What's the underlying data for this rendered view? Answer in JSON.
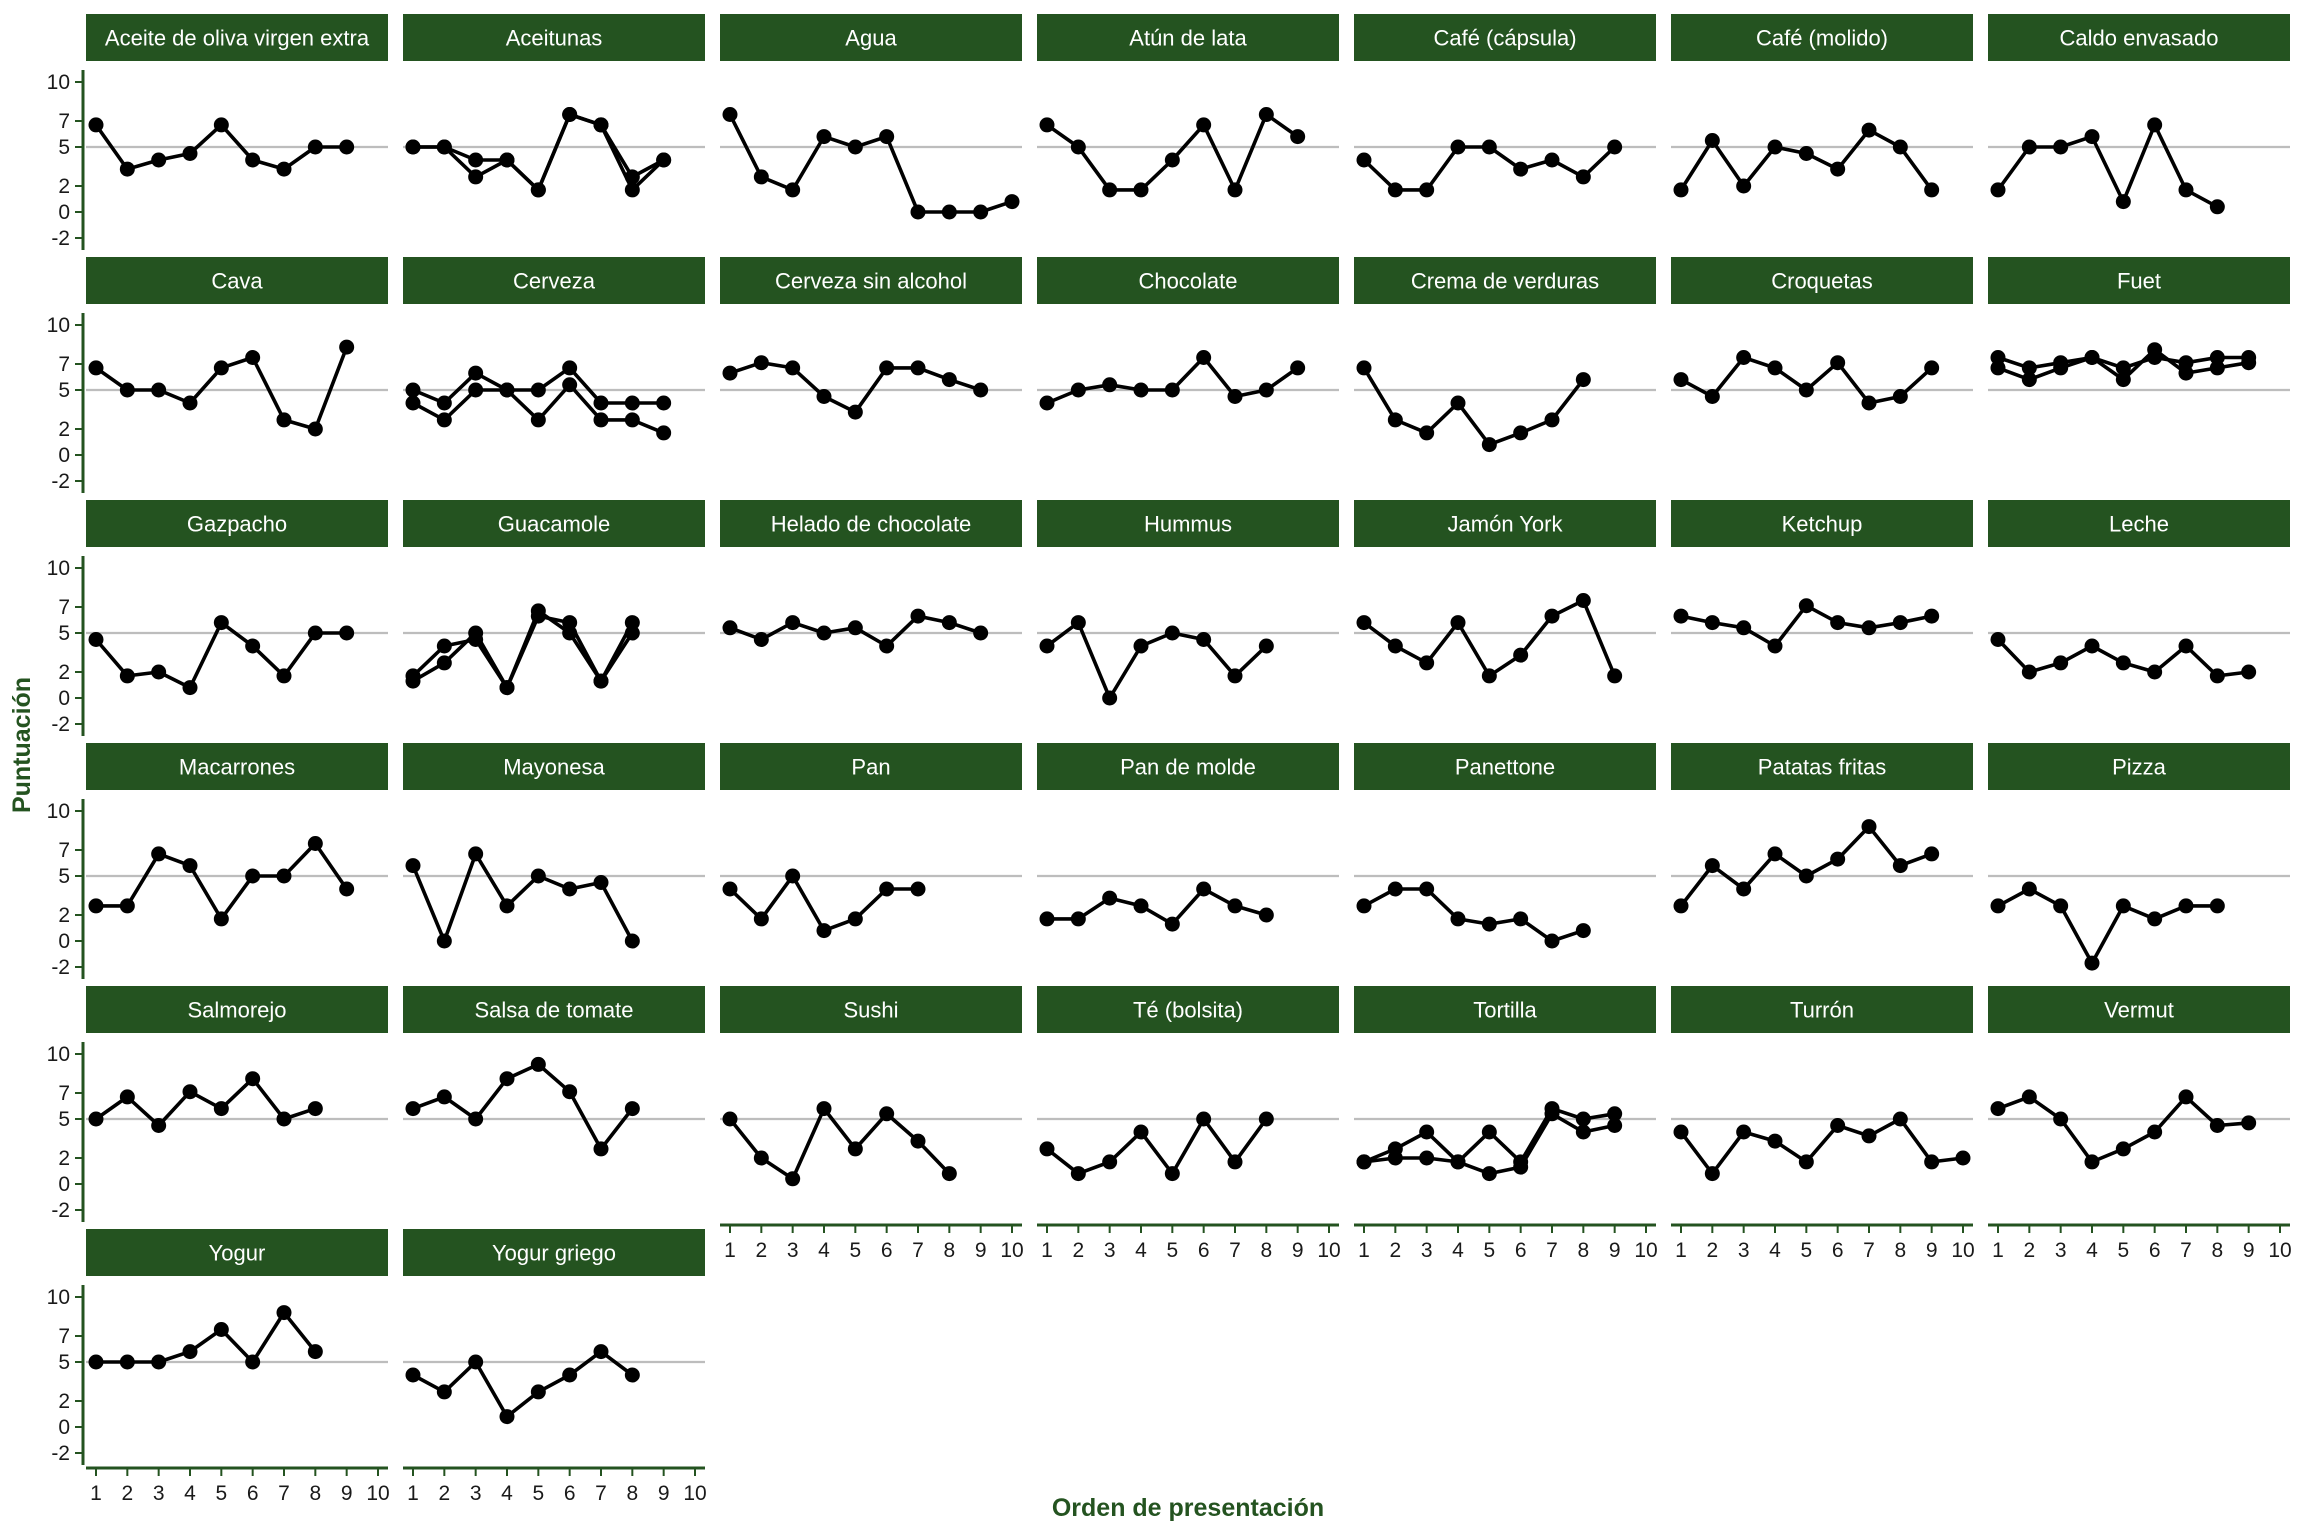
{
  "colors": {
    "strip": "#245320",
    "axis": "#245320",
    "line": "#000000",
    "point": "#000000",
    "refline": "#bdbdbd",
    "title": "#245320"
  },
  "chart_data": {
    "type": "line",
    "layout": "facet-grid",
    "xlabel": "Orden de presentación",
    "ylabel": "Puntuación",
    "xlim": [
      1,
      10
    ],
    "ylim": [
      -2,
      10
    ],
    "x_ticks": [
      1,
      2,
      3,
      4,
      5,
      6,
      7,
      8,
      9,
      10
    ],
    "y_ticks": [
      -2,
      0,
      2,
      5,
      7,
      10
    ],
    "reference_line": 5,
    "panels": [
      {
        "title": "Aceite de oliva virgen extra",
        "series": [
          [
            6.7,
            3.3,
            4,
            4.5,
            6.7,
            4,
            3.3,
            5,
            5
          ]
        ]
      },
      {
        "title": "Aceitunas",
        "series": [
          [
            5,
            5,
            4,
            4,
            1.7,
            7.5,
            6.7,
            1.7,
            4
          ],
          [
            5,
            5,
            2.7,
            4,
            1.7,
            7.5,
            6.7,
            2.7,
            4
          ]
        ]
      },
      {
        "title": "Agua",
        "series": [
          [
            7.5,
            2.7,
            1.7,
            5.8,
            5,
            5.8,
            0,
            0,
            0,
            0.8
          ]
        ]
      },
      {
        "title": "Atún de lata",
        "series": [
          [
            6.7,
            5,
            1.7,
            1.7,
            4,
            6.7,
            1.7,
            7.5,
            5.8
          ]
        ]
      },
      {
        "title": "Café (cápsula)",
        "series": [
          [
            4,
            1.7,
            1.7,
            5,
            5,
            3.3,
            4,
            2.7,
            5
          ]
        ]
      },
      {
        "title": "Café (molido)",
        "series": [
          [
            1.7,
            5.5,
            2,
            5,
            4.5,
            3.3,
            6.3,
            5,
            1.7
          ]
        ]
      },
      {
        "title": "Caldo envasado",
        "series": [
          [
            1.7,
            5,
            5,
            5.8,
            0.8,
            6.7,
            1.7,
            0.4
          ]
        ]
      },
      {
        "title": "Cava",
        "series": [
          [
            6.7,
            5,
            5,
            4,
            6.7,
            7.5,
            2.7,
            2,
            8.3
          ]
        ]
      },
      {
        "title": "Cerveza",
        "series": [
          [
            5,
            4,
            6.3,
            5,
            5,
            6.7,
            4,
            4,
            4
          ],
          [
            4,
            2.7,
            5,
            5,
            2.7,
            5.4,
            2.7,
            2.7,
            1.7
          ]
        ]
      },
      {
        "title": "Cerveza sin alcohol",
        "series": [
          [
            6.3,
            7.1,
            6.7,
            4.5,
            3.3,
            6.7,
            6.7,
            5.8,
            5
          ]
        ]
      },
      {
        "title": "Chocolate",
        "series": [
          [
            4,
            5,
            5.4,
            5,
            5,
            7.5,
            4.5,
            5,
            6.7
          ]
        ]
      },
      {
        "title": "Crema de verduras",
        "series": [
          [
            6.7,
            2.7,
            1.7,
            4,
            0.8,
            1.7,
            2.7,
            5.8
          ]
        ]
      },
      {
        "title": "Croquetas",
        "series": [
          [
            5.8,
            4.5,
            7.5,
            6.7,
            5,
            7.1,
            4,
            4.5,
            6.7
          ]
        ]
      },
      {
        "title": "Fuet",
        "series": [
          [
            7.5,
            6.7,
            7.1,
            7.5,
            6.7,
            7.5,
            7.1,
            7.5,
            7.5
          ],
          [
            6.7,
            5.8,
            6.7,
            7.5,
            5.8,
            8.1,
            6.3,
            6.7,
            7.1
          ]
        ]
      },
      {
        "title": "Gazpacho",
        "series": [
          [
            4.5,
            1.7,
            2,
            0.8,
            5.8,
            4,
            1.7,
            5,
            5
          ]
        ]
      },
      {
        "title": "Guacamole",
        "series": [
          [
            1.7,
            4,
            4.5,
            0.8,
            6.7,
            5,
            1.3,
            5.8
          ],
          [
            1.3,
            2.7,
            5,
            0.8,
            6.3,
            5.8,
            1.3,
            5
          ]
        ]
      },
      {
        "title": "Helado de chocolate",
        "series": [
          [
            5.4,
            4.5,
            5.8,
            5,
            5.4,
            4,
            6.3,
            5.8,
            5
          ]
        ]
      },
      {
        "title": "Hummus",
        "series": [
          [
            4,
            5.8,
            0,
            4,
            5,
            4.5,
            1.7,
            4
          ]
        ]
      },
      {
        "title": "Jamón York",
        "series": [
          [
            5.8,
            4,
            2.7,
            5.8,
            1.7,
            3.3,
            6.3,
            7.5,
            1.7
          ]
        ]
      },
      {
        "title": "Ketchup",
        "series": [
          [
            6.3,
            5.8,
            5.4,
            4,
            7.1,
            5.8,
            5.4,
            5.8,
            6.3
          ]
        ]
      },
      {
        "title": "Leche",
        "series": [
          [
            4.5,
            2,
            2.7,
            4,
            2.7,
            2,
            4,
            1.7,
            2
          ]
        ]
      },
      {
        "title": "Macarrones",
        "series": [
          [
            2.7,
            2.7,
            6.7,
            5.8,
            1.7,
            5,
            5,
            7.5,
            4
          ]
        ]
      },
      {
        "title": "Mayonesa",
        "series": [
          [
            5.8,
            0,
            6.7,
            2.7,
            5,
            4,
            4.5,
            0
          ]
        ]
      },
      {
        "title": "Pan",
        "series": [
          [
            4,
            1.7,
            5,
            0.8,
            1.7,
            4,
            4
          ]
        ]
      },
      {
        "title": "Pan de molde",
        "series": [
          [
            1.7,
            1.7,
            3.3,
            2.7,
            1.3,
            4,
            2.7,
            2
          ]
        ]
      },
      {
        "title": "Panettone",
        "series": [
          [
            2.7,
            4,
            4,
            1.7,
            1.3,
            1.7,
            0,
            0.8
          ]
        ]
      },
      {
        "title": "Patatas fritas",
        "series": [
          [
            2.7,
            5.8,
            4,
            6.7,
            5,
            6.3,
            8.8,
            5.8,
            6.7
          ]
        ]
      },
      {
        "title": "Pizza",
        "series": [
          [
            2.7,
            4,
            2.7,
            -1.7,
            2.7,
            1.7,
            2.7,
            2.7
          ]
        ]
      },
      {
        "title": "Salmorejo",
        "series": [
          [
            5,
            6.7,
            4.5,
            7.1,
            5.8,
            8.1,
            5,
            5.8
          ]
        ]
      },
      {
        "title": "Salsa de tomate",
        "series": [
          [
            5.8,
            6.7,
            5,
            8.1,
            9.2,
            7.1,
            2.7,
            5.8
          ]
        ]
      },
      {
        "title": "Sushi",
        "series": [
          [
            5,
            2,
            0.4,
            5.8,
            2.7,
            5.4,
            3.3,
            0.8
          ]
        ]
      },
      {
        "title": "Té (bolsita)",
        "series": [
          [
            2.7,
            0.8,
            1.7,
            4,
            0.8,
            5,
            1.7,
            5
          ]
        ]
      },
      {
        "title": "Tortilla",
        "series": [
          [
            1.7,
            2.7,
            4,
            1.7,
            4,
            1.7,
            5.8,
            5,
            5.4
          ],
          [
            1.7,
            2,
            2,
            1.7,
            0.8,
            1.3,
            5.4,
            4,
            4.5
          ]
        ]
      },
      {
        "title": "Turrón",
        "series": [
          [
            4,
            0.8,
            4,
            3.3,
            1.7,
            4.5,
            3.7,
            5,
            1.7,
            2
          ]
        ]
      },
      {
        "title": "Vermut",
        "series": [
          [
            5.8,
            6.7,
            5,
            1.7,
            2.7,
            4,
            6.7,
            4.5,
            4.7
          ]
        ]
      },
      {
        "title": "Yogur",
        "series": [
          [
            5,
            5,
            5,
            5.8,
            7.5,
            5,
            8.8,
            5.8
          ]
        ]
      },
      {
        "title": "Yogur griego",
        "series": [
          [
            4,
            2.7,
            5,
            0.8,
            2.7,
            4,
            5.8,
            4
          ]
        ]
      }
    ]
  }
}
